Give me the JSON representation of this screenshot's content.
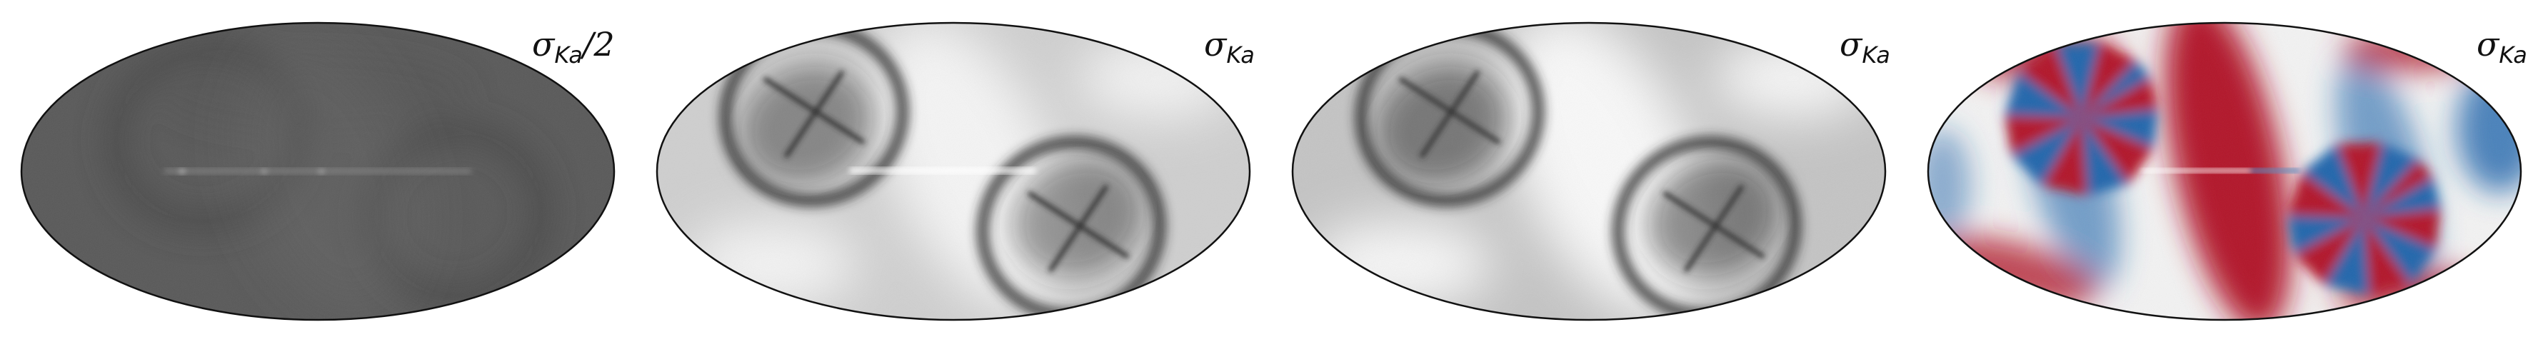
{
  "figure": {
    "panels": [
      {
        "label": "σ",
        "label_sub": "Ka",
        "label_suffix": "/2",
        "colormap": "gray-low-contrast",
        "colors": {
          "base": "#5a5a5a",
          "dark": "#4a4a4a",
          "light": "#6a6a6a"
        }
      },
      {
        "label": "σ",
        "label_sub": "Ka",
        "label_suffix": "",
        "colormap": "gray",
        "colors": {
          "base": "#cfcfcf",
          "dark": "#2a2a2a",
          "light": "#f4f4f4"
        }
      },
      {
        "label": "σ",
        "label_sub": "Ka",
        "label_suffix": "",
        "colormap": "gray",
        "colors": {
          "base": "#c4c4c4",
          "dark": "#2e2e2e",
          "light": "#f8f8f8"
        }
      },
      {
        "label": "σ",
        "label_sub": "Ka",
        "label_suffix": "",
        "colormap": "red-blue",
        "colors": {
          "base": "#f2f2f2",
          "red": "#b2182b",
          "blue": "#2166ac",
          "lightred": "#f4a582",
          "lightblue": "#92c5de"
        }
      }
    ]
  }
}
